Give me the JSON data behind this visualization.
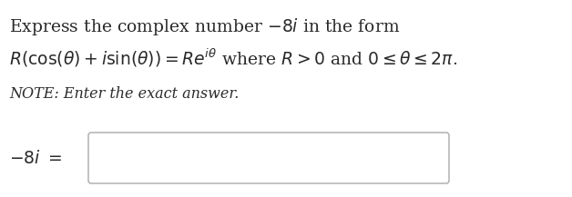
{
  "bg_color": "#ffffff",
  "line1": "Express the complex number $-8i$ in the form",
  "line2": "$R(\\cos(\\theta) + i\\sin(\\theta)) = Re^{i\\theta}$ where $R > 0$ and $0 \\leq \\theta \\leq 2\\pi$.",
  "note": "NOTE: Enter the exact answer.",
  "label": "$-8i\\ =$",
  "text_color": "#2a2a2a",
  "box_edge_color": "#aaaaaa",
  "box_fill": "#ffffff",
  "font_size_main": 13.5,
  "font_size_note": 11.5,
  "font_size_label": 13.5,
  "fig_width": 6.28,
  "fig_height": 2.17,
  "dpi": 100
}
